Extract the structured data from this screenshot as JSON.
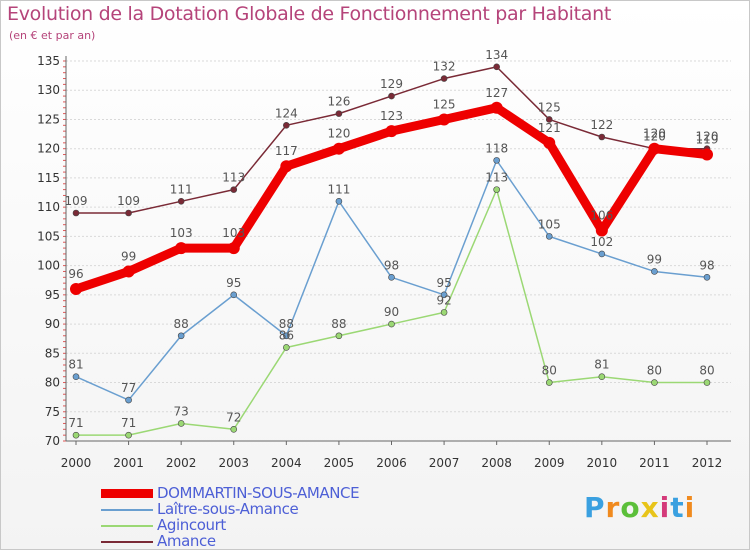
{
  "header": {
    "title": "Evolution de la Dotation Globale de Fonctionnement par Habitant",
    "subtitle": "(en € et par an)"
  },
  "logo": {
    "text": "Proxiti",
    "colors": [
      "#3aa0e0",
      "#f08a1e",
      "#5bbf3a",
      "#e8c41a",
      "#d43a7a",
      "#3aa0e0",
      "#f08a1e"
    ]
  },
  "chart_data": {
    "type": "line",
    "x": [
      "2000",
      "2001",
      "2002",
      "2003",
      "2004",
      "2005",
      "2006",
      "2007",
      "2008",
      "2009",
      "2010",
      "2011",
      "2012"
    ],
    "ylim": [
      70,
      135
    ],
    "yticks": [
      70,
      75,
      80,
      85,
      90,
      95,
      100,
      105,
      110,
      115,
      120,
      125,
      130,
      135
    ],
    "grid": "horizontal",
    "legend_position": "bottom",
    "series": [
      {
        "name": "DOMMARTIN-SOUS-AMANCE",
        "color": "#ee0000",
        "values": [
          96,
          99,
          103,
          103,
          117,
          120,
          123,
          125,
          127,
          121,
          106,
          120,
          119
        ]
      },
      {
        "name": "Laître-sous-Amance",
        "color": "#6a9fd0",
        "values": [
          81,
          77,
          88,
          95,
          88,
          111,
          98,
          95,
          118,
          105,
          102,
          99,
          98
        ]
      },
      {
        "name": "Agincourt",
        "color": "#9bd874",
        "values": [
          71,
          71,
          73,
          72,
          86,
          88,
          90,
          92,
          113,
          80,
          81,
          80,
          80
        ]
      },
      {
        "name": "Amance",
        "color": "#7a2a36",
        "values": [
          109,
          109,
          111,
          113,
          124,
          126,
          129,
          132,
          134,
          125,
          122,
          120,
          120
        ]
      }
    ]
  }
}
